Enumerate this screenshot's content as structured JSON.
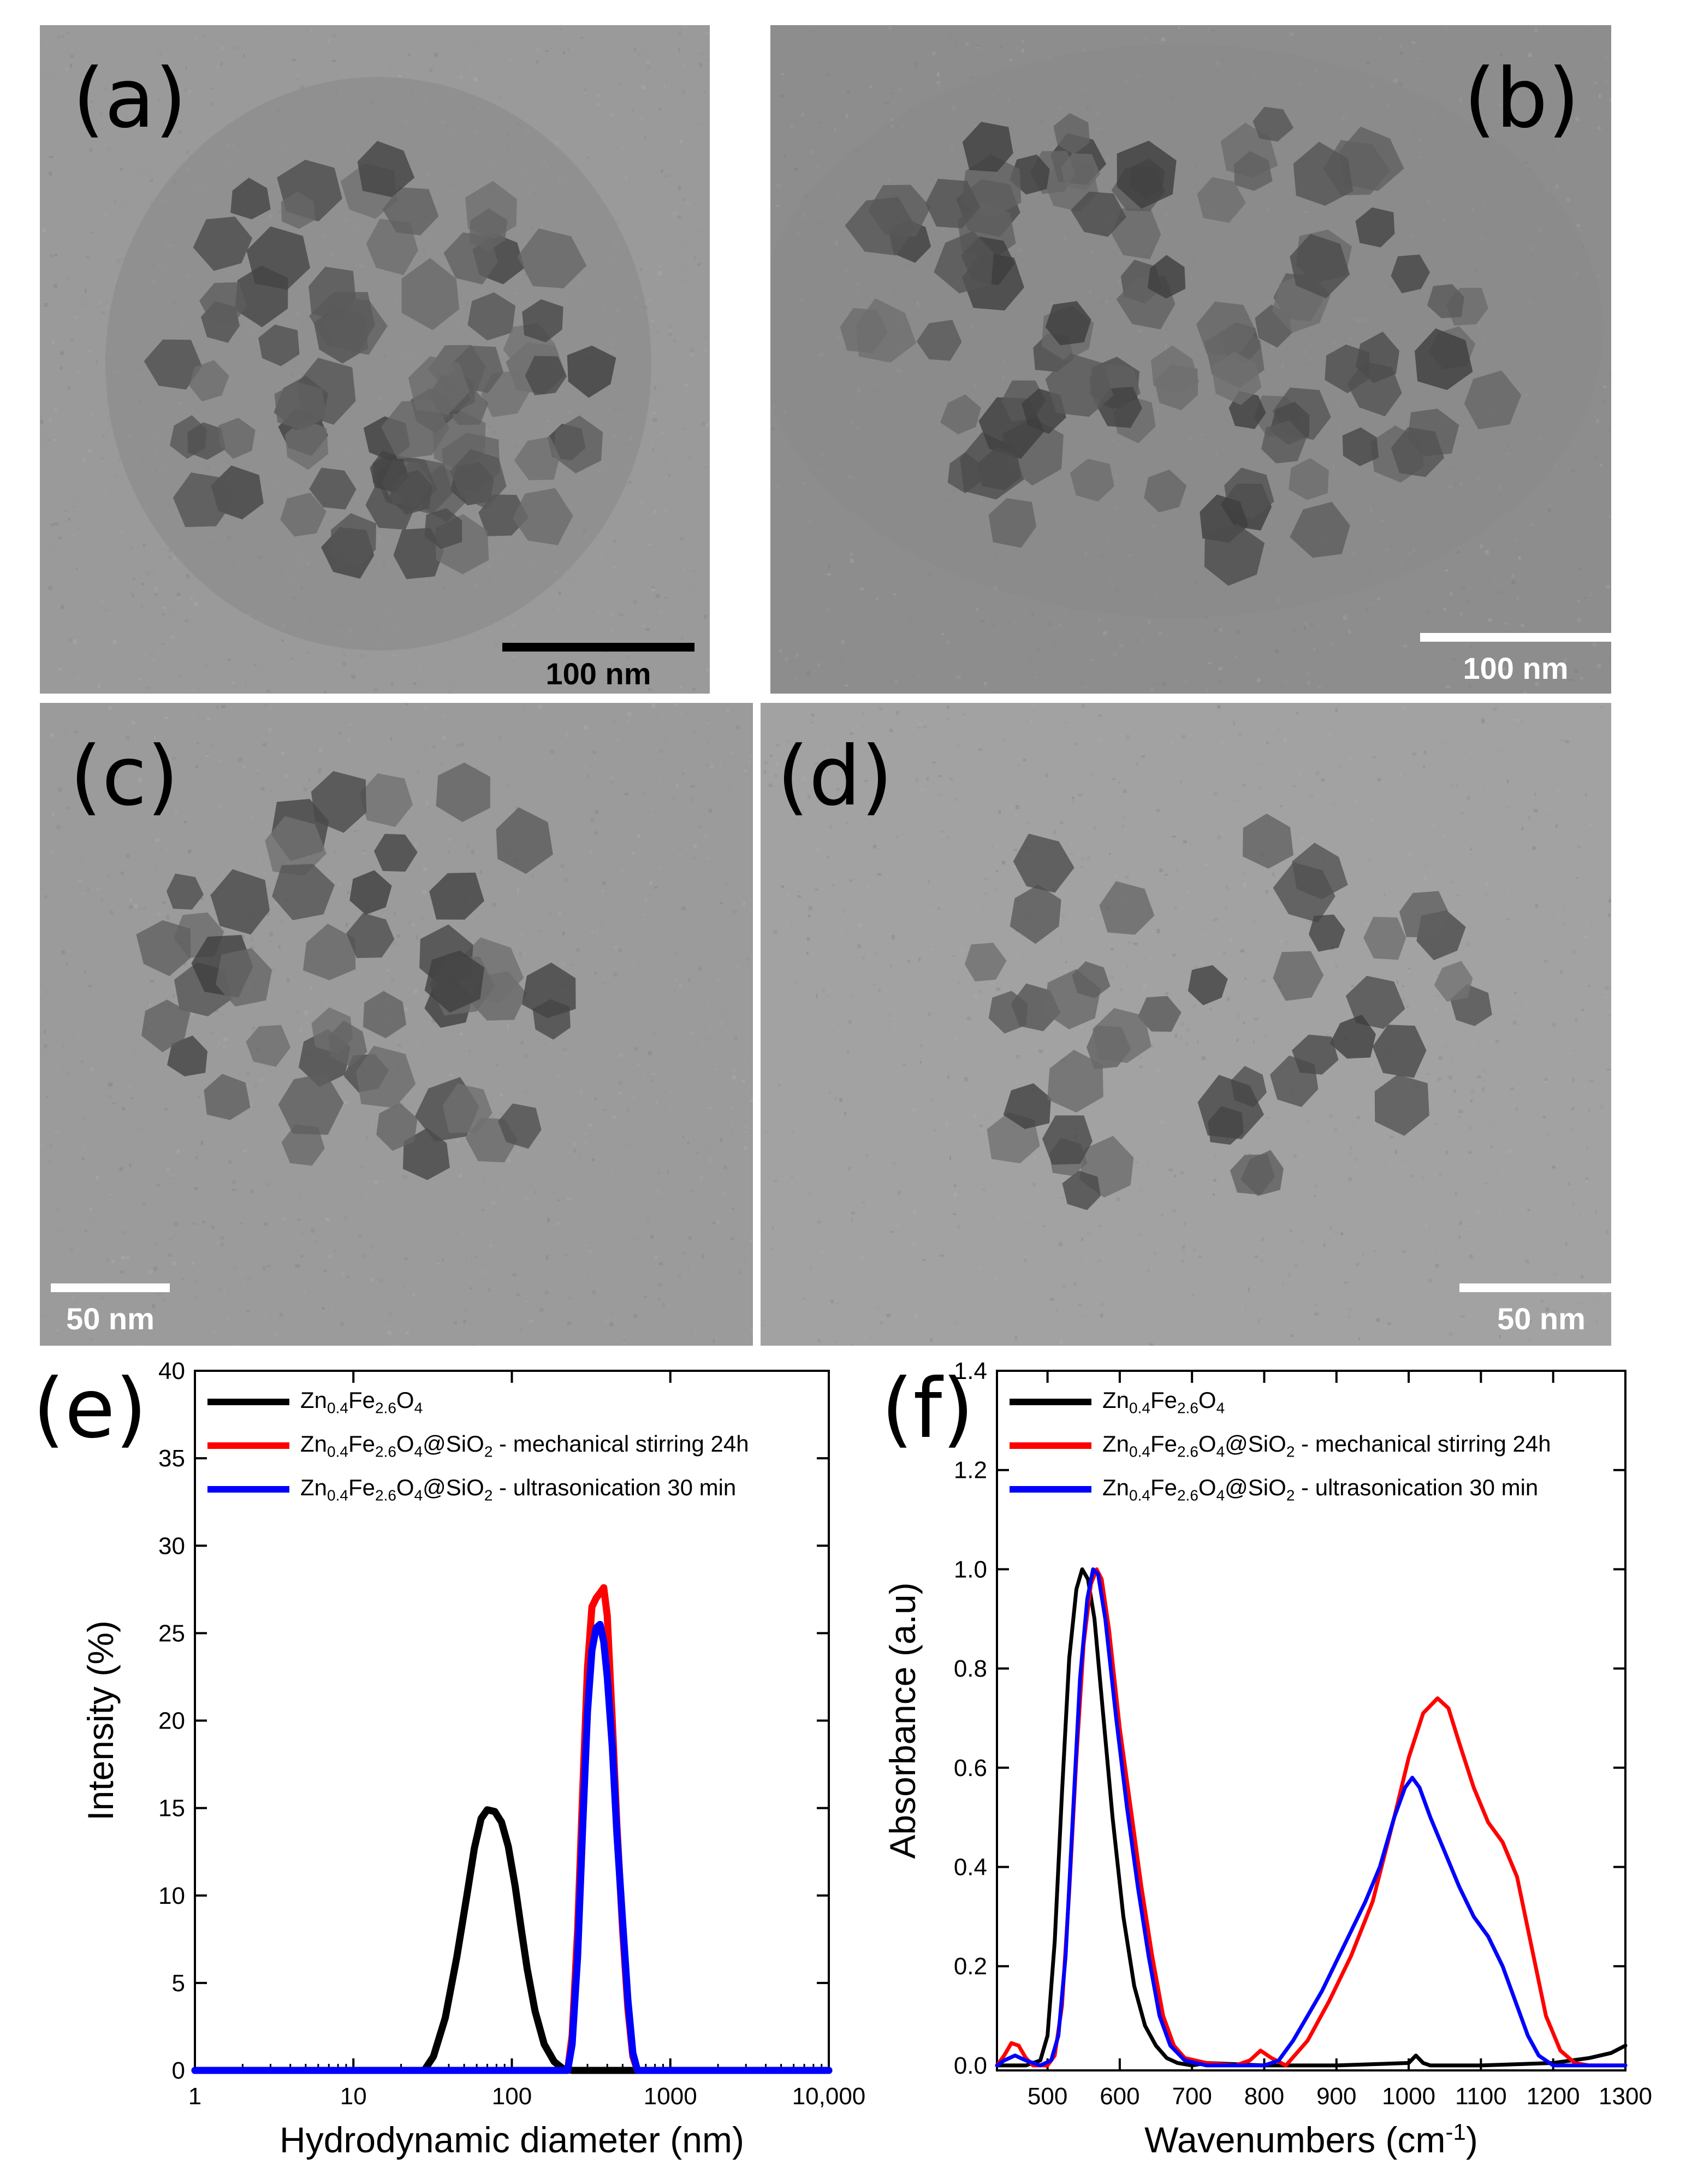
{
  "panels": [
    {
      "id": "a",
      "letter": "(a)",
      "scale_label": "100 nm",
      "scale_color": "#000000",
      "background": "#9a9a9a"
    },
    {
      "id": "b",
      "letter": "(b)",
      "scale_label": "100 nm",
      "scale_color": "#ffffff",
      "background": "#8d8d8d"
    },
    {
      "id": "c",
      "letter": "(c)",
      "scale_label": "50 nm",
      "scale_color": "#ffffff",
      "background": "#9b9b9b"
    },
    {
      "id": "d",
      "letter": "(d)",
      "scale_label": "50 nm",
      "scale_color": "#ffffff",
      "background": "#a2a2a2"
    }
  ],
  "chart_data": [
    {
      "id": "e",
      "panel_letter": "(e)",
      "type": "line",
      "xlabel": "Hydrodynamic diameter (nm)",
      "ylabel": "Intensity (%)",
      "x_scale": "log",
      "xlim": [
        1,
        10000
      ],
      "ylim": [
        0,
        40
      ],
      "x_ticks": [
        1,
        10,
        100,
        1000,
        10000
      ],
      "x_tick_labels": [
        "1",
        "10",
        "100",
        "1000",
        "10,000"
      ],
      "y_ticks": [
        0,
        5,
        10,
        15,
        20,
        25,
        30,
        35,
        40
      ],
      "y_tick_labels": [
        "0",
        "5",
        "10",
        "15",
        "20",
        "25",
        "30",
        "35",
        "40"
      ],
      "grid": false,
      "legend_position": "top-left",
      "series": [
        {
          "name": "Zn0.4Fe2.6O4",
          "name_parts": {
            "pre": "Zn",
            "s1": "0.4",
            "mid": "Fe",
            "s2": "2.6",
            "mid2": "O",
            "s3": "4",
            "post": ""
          },
          "color": "#000000",
          "x": [
            1,
            20,
            28,
            32,
            38,
            45,
            52,
            58,
            64,
            70,
            78,
            86,
            95,
            105,
            115,
            125,
            140,
            160,
            185,
            210,
            240,
            300,
            1000,
            10000
          ],
          "y": [
            0,
            0,
            0,
            0.8,
            3,
            6.5,
            10,
            12.7,
            14.4,
            14.9,
            14.8,
            14.2,
            12.8,
            10.5,
            8,
            5.8,
            3.4,
            1.5,
            0.5,
            0.1,
            0,
            0,
            0,
            0
          ]
        },
        {
          "name": "Zn0.4Fe2.6O4@SiO2 - mechanical stirring 24h",
          "name_parts": {
            "pre": "Zn",
            "s1": "0.4",
            "mid": "Fe",
            "s2": "2.6",
            "mid2": "O",
            "s3": "4",
            "post": "@SiO",
            "s4": "2",
            "tail": " - mechanical stirring 24h"
          },
          "color": "#ff0000",
          "x": [
            1,
            100,
            225,
            240,
            260,
            280,
            300,
            320,
            340,
            360,
            380,
            400,
            430,
            460,
            500,
            540,
            580,
            620,
            1000,
            10000
          ],
          "y": [
            0,
            0,
            0,
            2,
            8,
            16,
            23,
            26.5,
            27,
            27.3,
            27.6,
            26,
            20,
            14,
            8,
            3.5,
            0.8,
            0,
            0,
            0
          ]
        },
        {
          "name": "Zn0.4Fe2.6O4@SiO2 - ultrasonication 30 min",
          "name_parts": {
            "pre": "Zn",
            "s1": "0.4",
            "mid": "Fe",
            "s2": "2.6",
            "mid2": "O",
            "s3": "4",
            "post": "@SiO",
            "s4": "2",
            "tail": " - ultrasonication 30 min"
          },
          "color": "#0000ff",
          "x": [
            1,
            100,
            225,
            240,
            260,
            280,
            300,
            320,
            340,
            360,
            380,
            400,
            430,
            460,
            500,
            540,
            580,
            620,
            1000,
            10000
          ],
          "y": [
            0,
            0,
            0,
            1.5,
            6.5,
            14,
            20.5,
            24,
            25.3,
            25.5,
            24.5,
            22.5,
            18.5,
            13.5,
            8.5,
            4,
            1,
            0,
            0,
            0
          ]
        }
      ]
    },
    {
      "id": "f",
      "panel_letter": "(f)",
      "type": "line",
      "xlabel": "Wavenumbers (cm",
      "xlabel_sup": "-1",
      "xlabel_close": ")",
      "ylabel": "Absorbance (a.u)",
      "x_scale": "linear",
      "xlim": [
        430,
        1300
      ],
      "ylim": [
        -0.01,
        1.4
      ],
      "x_ticks": [
        500,
        600,
        700,
        800,
        900,
        1000,
        1100,
        1200,
        1300
      ],
      "x_tick_labels": [
        "500",
        "600",
        "700",
        "800",
        "900",
        "1000",
        "1100",
        "1200",
        "1300"
      ],
      "y_ticks": [
        0.0,
        0.2,
        0.4,
        0.6,
        0.8,
        1.0,
        1.2,
        1.4
      ],
      "y_tick_labels": [
        "0.0",
        "0.2",
        "0.4",
        "0.6",
        "0.8",
        "1.0",
        "1.2",
        "1.4"
      ],
      "grid": false,
      "legend_position": "top-left",
      "series": [
        {
          "name": "Zn0.4Fe2.6O4",
          "name_parts": {
            "pre": "Zn",
            "s1": "0.4",
            "mid": "Fe",
            "s2": "2.6",
            "mid2": "O",
            "s3": "4",
            "post": ""
          },
          "color": "#000000",
          "x": [
            430,
            470,
            490,
            500,
            510,
            520,
            530,
            540,
            548,
            556,
            565,
            575,
            590,
            605,
            620,
            635,
            650,
            665,
            680,
            700,
            720,
            800,
            900,
            1000,
            1010,
            1020,
            1030,
            1100,
            1200,
            1250,
            1280,
            1300
          ],
          "y": [
            0.0,
            0.0,
            0.01,
            0.06,
            0.25,
            0.55,
            0.82,
            0.96,
            1.0,
            0.98,
            0.9,
            0.74,
            0.5,
            0.3,
            0.16,
            0.08,
            0.04,
            0.015,
            0.005,
            0.0,
            0.005,
            0.0,
            0.0,
            0.005,
            0.02,
            0.005,
            0.0,
            0.0,
            0.005,
            0.015,
            0.025,
            0.04
          ]
        },
        {
          "name": "Zn0.4Fe2.6O4@SiO2 - mechanical stirring 24h",
          "name_parts": {
            "pre": "Zn",
            "s1": "0.4",
            "mid": "Fe",
            "s2": "2.6",
            "mid2": "O",
            "s3": "4",
            "post": "@SiO",
            "s4": "2",
            "tail": " - mechanical stirring 24h"
          },
          "color": "#ff0000",
          "x": [
            430,
            440,
            450,
            460,
            470,
            480,
            500,
            510,
            520,
            530,
            540,
            550,
            560,
            568,
            575,
            585,
            600,
            615,
            630,
            645,
            660,
            675,
            690,
            720,
            760,
            780,
            795,
            810,
            830,
            860,
            890,
            920,
            950,
            980,
            1000,
            1020,
            1040,
            1055,
            1070,
            1090,
            1110,
            1130,
            1150,
            1170,
            1190,
            1210,
            1230,
            1250,
            1300
          ],
          "y": [
            0.0,
            0.02,
            0.045,
            0.04,
            0.015,
            0.0,
            0.0,
            0.02,
            0.12,
            0.35,
            0.62,
            0.85,
            0.97,
            1.0,
            0.98,
            0.88,
            0.68,
            0.52,
            0.36,
            0.22,
            0.1,
            0.04,
            0.015,
            0.005,
            0.0,
            0.01,
            0.03,
            0.015,
            0.0,
            0.05,
            0.13,
            0.22,
            0.33,
            0.5,
            0.62,
            0.71,
            0.74,
            0.72,
            0.65,
            0.56,
            0.49,
            0.45,
            0.38,
            0.24,
            0.1,
            0.03,
            0.005,
            0.0,
            0.0
          ]
        },
        {
          "name": "Zn0.4Fe2.6O4@SiO2 - ultrasonication 30 min",
          "name_parts": {
            "pre": "Zn",
            "s1": "0.4",
            "mid": "Fe",
            "s2": "2.6",
            "mid2": "O",
            "s3": "4",
            "post": "@SiO",
            "s4": "2",
            "tail": " - ultrasonication 30 min"
          },
          "color": "#0000ff",
          "x": [
            430,
            440,
            455,
            470,
            490,
            505,
            515,
            525,
            535,
            545,
            555,
            563,
            570,
            580,
            595,
            610,
            625,
            640,
            655,
            670,
            690,
            720,
            760,
            800,
            820,
            840,
            860,
            880,
            900,
            920,
            940,
            960,
            980,
            995,
            1005,
            1015,
            1030,
            1050,
            1070,
            1090,
            1110,
            1130,
            1150,
            1165,
            1180,
            1200,
            1300
          ],
          "y": [
            0.0,
            0.01,
            0.02,
            0.01,
            0.0,
            0.01,
            0.06,
            0.22,
            0.5,
            0.78,
            0.94,
            1.0,
            0.99,
            0.9,
            0.7,
            0.52,
            0.36,
            0.22,
            0.1,
            0.04,
            0.01,
            0.0,
            0.0,
            0.0,
            0.01,
            0.05,
            0.1,
            0.15,
            0.21,
            0.27,
            0.33,
            0.4,
            0.5,
            0.56,
            0.58,
            0.56,
            0.5,
            0.43,
            0.36,
            0.3,
            0.26,
            0.2,
            0.12,
            0.06,
            0.02,
            0.0,
            0.0
          ]
        }
      ]
    }
  ]
}
